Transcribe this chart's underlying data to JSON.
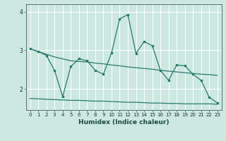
{
  "title": "",
  "xlabel": "Humidex (Indice chaleur)",
  "ylabel": "",
  "bg_color": "#cce8e0",
  "grid_color": "#ffffff",
  "line_color": "#2a7a6e",
  "xlim": [
    -0.5,
    23.5
  ],
  "ylim": [
    1.45,
    4.2
  ],
  "yticks": [
    2,
    3,
    4
  ],
  "xticks": [
    0,
    1,
    2,
    3,
    4,
    5,
    6,
    7,
    8,
    9,
    10,
    11,
    12,
    13,
    14,
    15,
    16,
    17,
    18,
    19,
    20,
    21,
    22,
    23
  ],
  "line1_x": [
    0,
    1,
    2,
    3,
    4,
    5,
    6,
    7,
    8,
    9,
    10,
    11,
    12,
    13,
    14,
    15,
    16,
    17,
    18,
    19,
    20,
    21,
    22,
    23
  ],
  "line1_y": [
    3.04,
    2.97,
    2.9,
    2.83,
    2.78,
    2.73,
    2.71,
    2.7,
    2.67,
    2.65,
    2.62,
    2.6,
    2.57,
    2.55,
    2.53,
    2.51,
    2.48,
    2.46,
    2.44,
    2.42,
    2.4,
    2.38,
    2.37,
    2.35
  ],
  "line2_x": [
    0,
    1,
    2,
    3,
    4,
    5,
    6,
    7,
    8,
    9,
    10,
    11,
    12,
    13,
    14,
    15,
    16,
    17,
    18,
    19,
    20,
    21,
    22,
    23
  ],
  "line2_y": [
    3.04,
    2.97,
    2.87,
    2.48,
    1.8,
    2.58,
    2.78,
    2.73,
    2.48,
    2.38,
    2.93,
    3.82,
    3.93,
    2.92,
    3.23,
    3.12,
    2.48,
    2.22,
    2.62,
    2.6,
    2.38,
    2.22,
    1.78,
    1.63
  ],
  "line3_full": [
    1.75,
    1.74,
    1.73,
    1.72,
    1.71,
    1.7,
    1.7,
    1.69,
    1.68,
    1.68,
    1.67,
    1.66,
    1.65,
    1.65,
    1.64,
    1.63,
    1.63,
    1.62,
    1.62,
    1.61,
    1.61,
    1.61,
    1.61,
    1.6
  ]
}
